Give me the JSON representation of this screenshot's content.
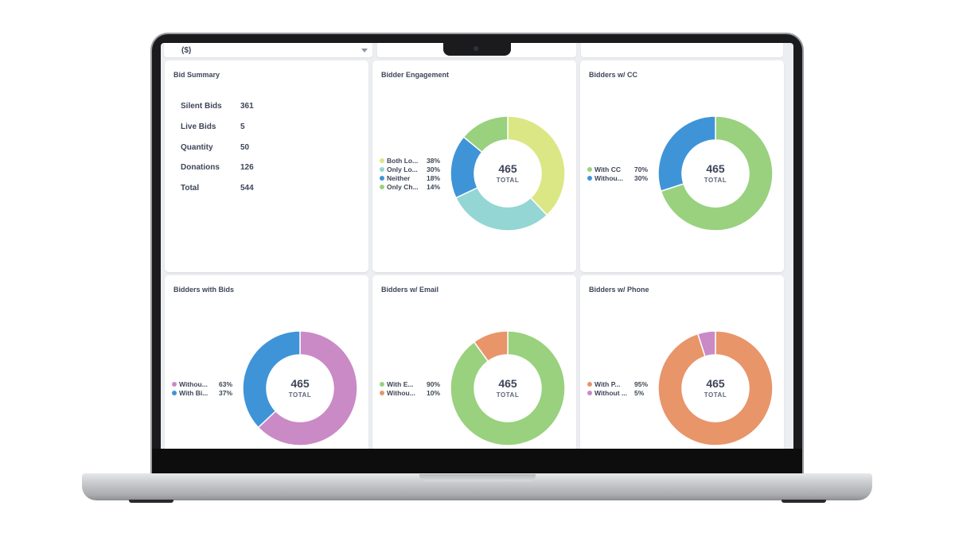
{
  "filter": {
    "currency_label": "($)"
  },
  "bid_summary": {
    "title": "Bid Summary",
    "rows": [
      {
        "label": "Silent Bids",
        "value": "361"
      },
      {
        "label": "Live Bids",
        "value": "5"
      },
      {
        "label": "Quantity",
        "value": "50"
      },
      {
        "label": "Donations",
        "value": "126"
      },
      {
        "label": "Total",
        "value": "544"
      }
    ]
  },
  "donut_cards": [
    {
      "title": "Bidder Engagement",
      "total": "465",
      "total_label": "TOTAL",
      "start_angle": 0,
      "segments": [
        {
          "label": "Both Lo...",
          "pct": "38%",
          "value": 38,
          "color": "#dbe785"
        },
        {
          "label": "Only Lo...",
          "pct": "30%",
          "value": 30,
          "color": "#93d6d3"
        },
        {
          "label": "Neither",
          "pct": "18%",
          "value": 18,
          "color": "#3f94d8"
        },
        {
          "label": "Only Ch...",
          "pct": "14%",
          "value": 14,
          "color": "#99d17f"
        }
      ]
    },
    {
      "title": "Bidders w/ CC",
      "total": "465",
      "total_label": "TOTAL",
      "start_angle": 0,
      "segments": [
        {
          "label": "With CC",
          "pct": "70%",
          "value": 70,
          "color": "#99d17f"
        },
        {
          "label": "Withou...",
          "pct": "30%",
          "value": 30,
          "color": "#3f94d8"
        }
      ]
    },
    {
      "title": "Bidders with Bids",
      "total": "465",
      "total_label": "TOTAL",
      "start_angle": 0,
      "segments": [
        {
          "label": "Withou...",
          "pct": "63%",
          "value": 63,
          "color": "#c98ac6"
        },
        {
          "label": "With Bi...",
          "pct": "37%",
          "value": 37,
          "color": "#3f94d8"
        }
      ]
    },
    {
      "title": "Bidders w/ Email",
      "total": "465",
      "total_label": "TOTAL",
      "start_angle": 0,
      "segments": [
        {
          "label": "With E...",
          "pct": "90%",
          "value": 90,
          "color": "#99d17f"
        },
        {
          "label": "Withou...",
          "pct": "10%",
          "value": 10,
          "color": "#e8956a"
        }
      ]
    },
    {
      "title": "Bidders w/ Phone",
      "total": "465",
      "total_label": "TOTAL",
      "start_angle": 0,
      "segments": [
        {
          "label": "With P...",
          "pct": "95%",
          "value": 95,
          "color": "#e8956a"
        },
        {
          "label": "Without ...",
          "pct": "5%",
          "value": 5,
          "color": "#c98ac6"
        }
      ]
    }
  ]
}
